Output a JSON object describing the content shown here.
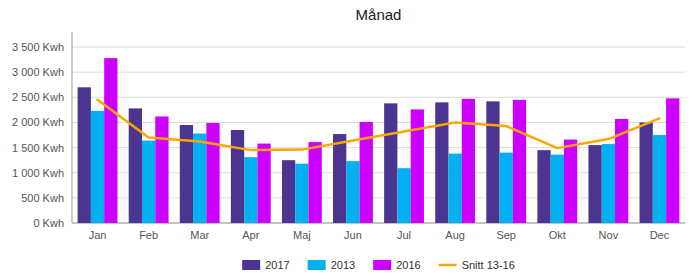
{
  "chart_data": {
    "type": "bar",
    "title": "Månad",
    "categories": [
      "Jan",
      "Feb",
      "Mar",
      "Apr",
      "Maj",
      "Jun",
      "Jul",
      "Aug",
      "Sep",
      "Okt",
      "Nov",
      "Dec"
    ],
    "series": [
      {
        "name": "2017",
        "color": "#4b3591",
        "values": [
          2700,
          2280,
          1950,
          1850,
          1250,
          1770,
          2380,
          2400,
          2420,
          1450,
          1550,
          2000
        ]
      },
      {
        "name": "2013",
        "color": "#00b0f0",
        "values": [
          2230,
          1640,
          1780,
          1310,
          1180,
          1230,
          1090,
          1380,
          1400,
          1360,
          1570,
          1750
        ]
      },
      {
        "name": "2016",
        "color": "#cc00ff",
        "values": [
          3280,
          2120,
          1990,
          1580,
          1610,
          2010,
          2260,
          2470,
          2450,
          1660,
          2070,
          2480
        ]
      },
      {
        "name": "Snitt 13-16",
        "type": "line",
        "color": "#ffa500",
        "values": [
          2450,
          1700,
          1620,
          1450,
          1460,
          1640,
          1820,
          2000,
          1930,
          1490,
          1670,
          2080
        ]
      }
    ],
    "ylim": [
      0,
      3800
    ],
    "yticks": [
      {
        "value": 0,
        "label": "0 Kwh"
      },
      {
        "value": 500,
        "label": "500 Kwh"
      },
      {
        "value": 1000,
        "label": "1 000 Kwh"
      },
      {
        "value": 1500,
        "label": "1 500 Kwh"
      },
      {
        "value": 2000,
        "label": "2 000 Kwh"
      },
      {
        "value": 2500,
        "label": "2 500 Kwh"
      },
      {
        "value": 3000,
        "label": "3 000 Kwh"
      },
      {
        "value": 3500,
        "label": "3 500 Kwh"
      }
    ],
    "grid": true,
    "legend": "bottom"
  }
}
